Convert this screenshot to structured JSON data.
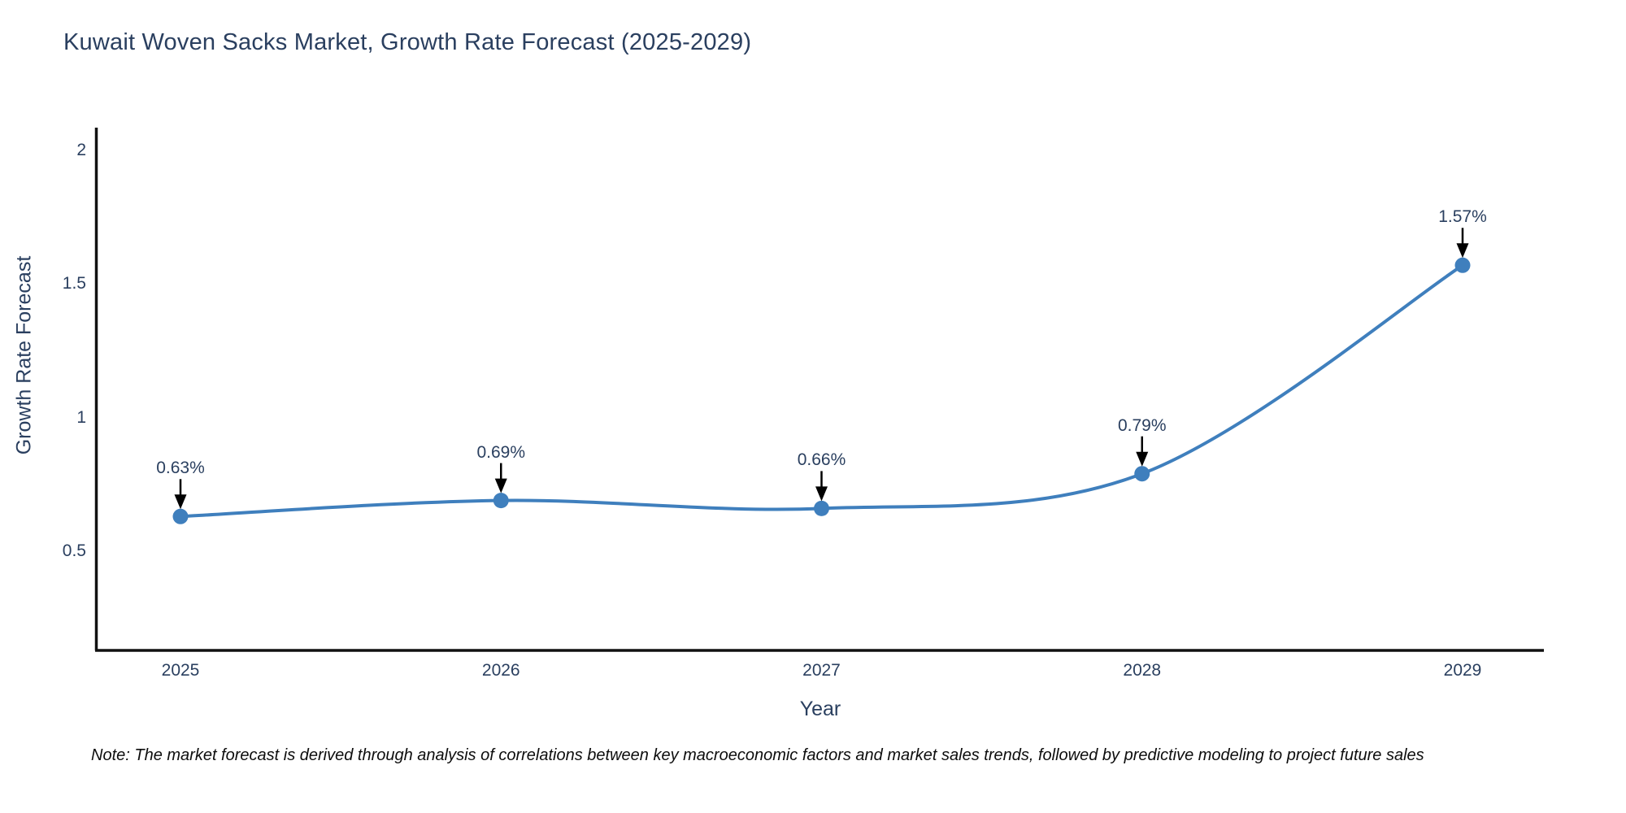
{
  "chart": {
    "title": "Kuwait Woven Sacks Market, Growth Rate Forecast (2025-2029)",
    "xlabel": "Year",
    "ylabel": "Growth Rate Forecast"
  },
  "note": {
    "text": "Note: The market forecast is derived through analysis of correlations between key macroeconomic factors and market sales trends, followed by predictive modeling to project future sales"
  },
  "chart_data": {
    "type": "line",
    "title": "Kuwait Woven Sacks Market, Growth Rate Forecast (2025-2029)",
    "xlabel": "Year",
    "ylabel": "Growth Rate Forecast",
    "x": [
      2025,
      2026,
      2027,
      2028,
      2029
    ],
    "xtick_labels": [
      "2025",
      "2026",
      "2027",
      "2028",
      "2029"
    ],
    "series": [
      {
        "name": "Growth Rate Forecast",
        "values": [
          0.63,
          0.69,
          0.66,
          0.79,
          1.57
        ]
      }
    ],
    "point_labels": [
      "0.63%",
      "0.69%",
      "0.66%",
      "0.79%",
      "1.57%"
    ],
    "yticks": [
      0.5,
      1,
      1.5,
      2
    ],
    "ytick_labels": [
      "0.5",
      "1",
      "1.5",
      "2"
    ],
    "ylim": [
      0.13,
      2.08
    ],
    "xlim": [
      2024.74,
      2029.25
    ],
    "grid": false,
    "legend": false,
    "line_shape": "spline",
    "colors": {
      "line": "#3f7fbd",
      "marker": "#3f7fbd",
      "axis": "#111111",
      "text": "#2a3f5f",
      "annotation_arrow": "#000000",
      "note_text": "#0d0d0d",
      "background": "#ffffff"
    }
  }
}
